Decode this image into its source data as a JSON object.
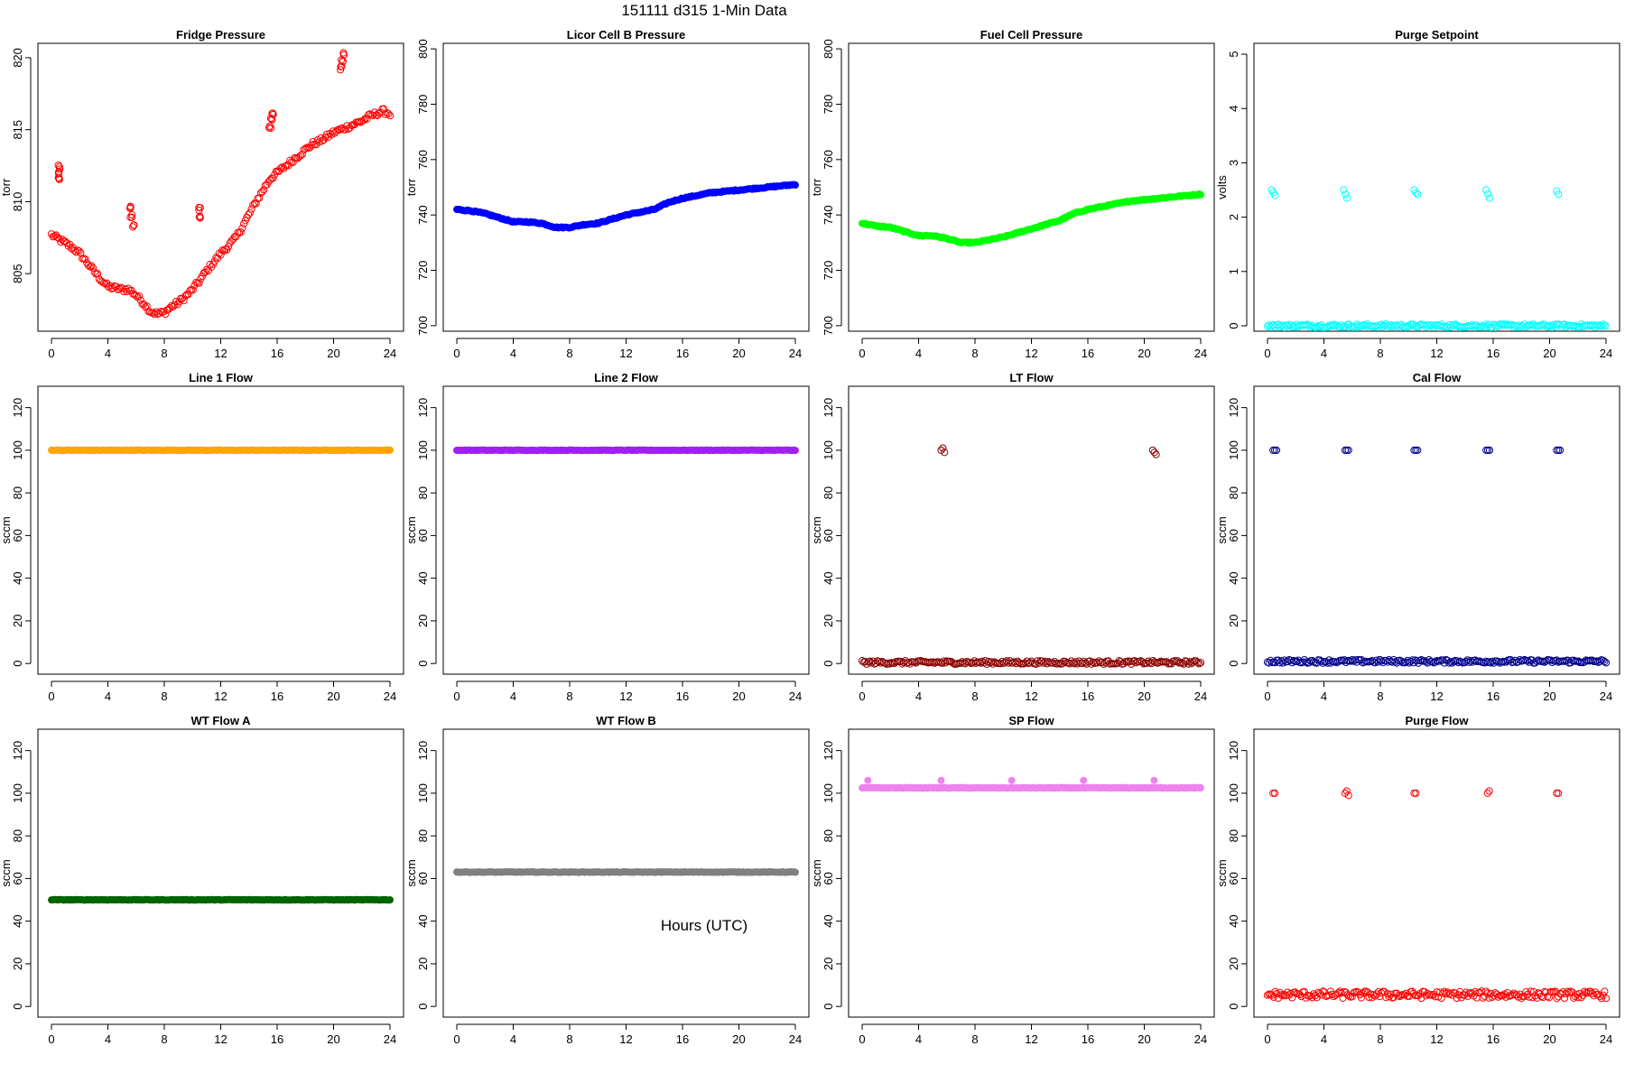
{
  "figure": {
    "title": "151111    d315    1-Min Data",
    "xlabel": "Hours (UTC)"
  },
  "chart_data": [
    {
      "type": "scatter",
      "title": "Fridge Pressure",
      "xlabel": "",
      "ylabel": "torr",
      "xlim": [
        0,
        24
      ],
      "ylim": [
        801,
        821
      ],
      "xticks": [
        0,
        4,
        8,
        12,
        16,
        20,
        24
      ],
      "yticks": [
        805,
        810,
        815,
        820
      ],
      "color": "#ff0000",
      "marker": "open-circle",
      "series": [
        {
          "x": [
            0,
            0.5,
            1,
            1.5,
            2,
            2.5,
            3,
            3.5,
            4,
            4.5,
            5,
            5.5,
            6,
            6.5,
            7,
            7.5,
            8,
            8.5,
            9,
            9.5,
            10,
            10.5,
            11,
            11.5,
            12,
            12.5,
            13,
            13.5,
            14,
            14.5,
            15,
            15.5,
            16,
            16.5,
            17,
            17.5,
            18,
            18.5,
            19,
            19.5,
            20,
            20.5,
            21,
            21.5,
            22,
            22.5,
            23,
            23.5,
            24
          ],
          "y": [
            807.7,
            807.4,
            807.1,
            806.8,
            806.4,
            805.8,
            805.2,
            804.6,
            804.1,
            804.0,
            803.9,
            803.9,
            803.5,
            803.0,
            802.4,
            802.2,
            802.3,
            802.7,
            803.0,
            803.4,
            803.9,
            804.5,
            805.2,
            805.8,
            806.4,
            806.9,
            807.4,
            808.2,
            809.1,
            810.0,
            810.8,
            811.6,
            812.0,
            812.4,
            812.8,
            813.2,
            813.6,
            814.0,
            814.2,
            814.5,
            814.8,
            815.0,
            815.2,
            815.4,
            815.6,
            815.9,
            816.1,
            816.3,
            816.1
          ],
          "outliers": [
            {
              "x": 0.45,
              "y": 812.0
            },
            {
              "x": 0.5,
              "y": 811.6
            },
            {
              "x": 0.55,
              "y": 812.4
            },
            {
              "x": 5.55,
              "y": 809.6
            },
            {
              "x": 5.65,
              "y": 809.0
            },
            {
              "x": 5.8,
              "y": 808.3
            },
            {
              "x": 10.5,
              "y": 809.5
            },
            {
              "x": 10.55,
              "y": 809.0
            },
            {
              "x": 15.5,
              "y": 815.2
            },
            {
              "x": 15.6,
              "y": 815.7
            },
            {
              "x": 15.7,
              "y": 816.1
            },
            {
              "x": 20.5,
              "y": 819.3
            },
            {
              "x": 20.6,
              "y": 819.8
            },
            {
              "x": 20.7,
              "y": 820.2
            }
          ]
        }
      ]
    },
    {
      "type": "scatter",
      "title": "Licor Cell B Pressure",
      "xlabel": "",
      "ylabel": "torr",
      "xlim": [
        0,
        24
      ],
      "ylim": [
        698,
        802
      ],
      "xticks": [
        0,
        4,
        8,
        12,
        16,
        20,
        24
      ],
      "yticks": [
        700,
        720,
        740,
        760,
        780,
        800
      ],
      "color": "#0000ff",
      "marker": "filled-circle",
      "series": [
        {
          "x": [
            0,
            1,
            2,
            3,
            4,
            5,
            6,
            7,
            8,
            9,
            10,
            11,
            12,
            13,
            14,
            15,
            16,
            17,
            18,
            19,
            20,
            21,
            22,
            23,
            24
          ],
          "y": [
            742,
            741.5,
            740.5,
            739,
            737.5,
            737.5,
            737,
            735.5,
            735.5,
            736.5,
            737,
            738.5,
            740,
            741,
            742,
            744.5,
            746,
            747,
            748,
            748.5,
            749,
            749.5,
            750,
            750.5,
            751
          ]
        }
      ]
    },
    {
      "type": "scatter",
      "title": "Fuel Cell Pressure",
      "xlabel": "",
      "ylabel": "torr",
      "xlim": [
        0,
        24
      ],
      "ylim": [
        698,
        802
      ],
      "xticks": [
        0,
        4,
        8,
        12,
        16,
        20,
        24
      ],
      "yticks": [
        700,
        720,
        740,
        760,
        780,
        800
      ],
      "color": "#00ff00",
      "marker": "filled-circle",
      "series": [
        {
          "x": [
            0,
            1,
            2,
            3,
            4,
            5,
            6,
            7,
            8,
            9,
            10,
            11,
            12,
            13,
            14,
            15,
            16,
            17,
            18,
            19,
            20,
            21,
            22,
            23,
            24
          ],
          "y": [
            737,
            736,
            735.5,
            734,
            732.5,
            732.5,
            731.5,
            730,
            730,
            731,
            732,
            733.5,
            735,
            736.5,
            738,
            740.5,
            742,
            743,
            744,
            745,
            745.5,
            746,
            746.5,
            747,
            747.5
          ]
        }
      ]
    },
    {
      "type": "scatter",
      "title": "Purge Setpoint",
      "xlabel": "",
      "ylabel": "volts",
      "xlim": [
        0,
        24
      ],
      "ylim": [
        -0.1,
        5.2
      ],
      "xticks": [
        0,
        4,
        8,
        12,
        16,
        20,
        24
      ],
      "yticks": [
        0,
        1,
        2,
        3,
        4,
        5
      ],
      "color": "#00ffff",
      "marker": "open-circle",
      "series": [
        {
          "baseline": 0,
          "clusters": [
            {
              "x": 0.3,
              "y": [
                2.5,
                2.45,
                2.4
              ]
            },
            {
              "x": 5.4,
              "y": [
                2.5,
                2.42,
                2.35
              ]
            },
            {
              "x": 10.4,
              "y": [
                2.5,
                2.45,
                2.42
              ]
            },
            {
              "x": 15.5,
              "y": [
                2.5,
                2.43,
                2.35
              ]
            },
            {
              "x": 20.5,
              "y": [
                2.48,
                2.42
              ]
            }
          ]
        }
      ]
    },
    {
      "type": "scatter",
      "title": "Line 1 Flow",
      "xlabel": "",
      "ylabel": "sccm",
      "xlim": [
        0,
        24
      ],
      "ylim": [
        -5,
        130
      ],
      "xticks": [
        0,
        4,
        8,
        12,
        16,
        20,
        24
      ],
      "yticks": [
        0,
        20,
        40,
        60,
        80,
        100,
        120
      ],
      "color": "#ffa500",
      "marker": "filled-circle",
      "series": [
        {
          "constant": 100
        }
      ]
    },
    {
      "type": "scatter",
      "title": "Line 2 Flow",
      "xlabel": "",
      "ylabel": "sccm",
      "xlim": [
        0,
        24
      ],
      "ylim": [
        -5,
        130
      ],
      "xticks": [
        0,
        4,
        8,
        12,
        16,
        20,
        24
      ],
      "yticks": [
        0,
        20,
        40,
        60,
        80,
        100,
        120
      ],
      "color": "#a020f0",
      "marker": "filled-circle",
      "series": [
        {
          "constant": 100
        }
      ]
    },
    {
      "type": "scatter",
      "title": "LT Flow",
      "xlabel": "",
      "ylabel": "sccm",
      "xlim": [
        0,
        24
      ],
      "ylim": [
        -5,
        130
      ],
      "xticks": [
        0,
        4,
        8,
        12,
        16,
        20,
        24
      ],
      "yticks": [
        0,
        20,
        40,
        60,
        80,
        100,
        120
      ],
      "color": "#8b0000",
      "marker": "open-circle",
      "series": [
        {
          "baseline": 0.5,
          "clusters": [
            {
              "x": 5.6,
              "y": [
                100,
                101,
                99
              ]
            },
            {
              "x": 20.6,
              "y": [
                100,
                99,
                98
              ]
            }
          ]
        }
      ]
    },
    {
      "type": "scatter",
      "title": "Cal Flow",
      "xlabel": "",
      "ylabel": "sccm",
      "xlim": [
        0,
        24
      ],
      "ylim": [
        -5,
        130
      ],
      "xticks": [
        0,
        4,
        8,
        12,
        16,
        20,
        24
      ],
      "yticks": [
        0,
        20,
        40,
        60,
        80,
        100,
        120
      ],
      "color": "#00008b",
      "marker": "open-circle",
      "series": [
        {
          "baseline": 1,
          "clusters": [
            {
              "x": 0.4,
              "y": [
                100,
                100,
                100
              ]
            },
            {
              "x": 5.5,
              "y": [
                100,
                100,
                100
              ]
            },
            {
              "x": 10.4,
              "y": [
                100,
                100,
                100
              ]
            },
            {
              "x": 15.5,
              "y": [
                100,
                100,
                100
              ]
            },
            {
              "x": 20.5,
              "y": [
                100,
                100,
                100
              ]
            }
          ]
        }
      ]
    },
    {
      "type": "scatter",
      "title": "WT Flow A",
      "xlabel": "",
      "ylabel": "sccm",
      "xlim": [
        0,
        24
      ],
      "ylim": [
        -5,
        130
      ],
      "xticks": [
        0,
        4,
        8,
        12,
        16,
        20,
        24
      ],
      "yticks": [
        0,
        20,
        40,
        60,
        80,
        100,
        120
      ],
      "color": "#006400",
      "marker": "filled-circle",
      "series": [
        {
          "constant": 50
        }
      ]
    },
    {
      "type": "scatter",
      "title": "WT Flow B",
      "xlabel": "",
      "ylabel": "sccm",
      "xlim": [
        0,
        24
      ],
      "ylim": [
        -5,
        130
      ],
      "xticks": [
        0,
        4,
        8,
        12,
        16,
        20,
        24
      ],
      "yticks": [
        0,
        20,
        40,
        60,
        80,
        100,
        120
      ],
      "color": "#808080",
      "marker": "filled-circle",
      "series": [
        {
          "constant": 63
        }
      ]
    },
    {
      "type": "scatter",
      "title": "SP Flow",
      "xlabel": "",
      "ylabel": "sccm",
      "xlim": [
        0,
        24
      ],
      "ylim": [
        -5,
        130
      ],
      "xticks": [
        0,
        4,
        8,
        12,
        16,
        20,
        24
      ],
      "yticks": [
        0,
        20,
        40,
        60,
        80,
        100,
        120
      ],
      "color": "#ee82ee",
      "marker": "filled-circle",
      "series": [
        {
          "constant": 102.5,
          "clusters": [
            {
              "x": 0.4,
              "y": [
                106
              ]
            },
            {
              "x": 5.6,
              "y": [
                106
              ]
            },
            {
              "x": 10.6,
              "y": [
                106
              ]
            },
            {
              "x": 15.7,
              "y": [
                106
              ]
            },
            {
              "x": 20.7,
              "y": [
                106
              ]
            }
          ]
        }
      ]
    },
    {
      "type": "scatter",
      "title": "Purge Flow",
      "xlabel": "",
      "ylabel": "sccm",
      "xlim": [
        0,
        24
      ],
      "ylim": [
        -5,
        130
      ],
      "xticks": [
        0,
        4,
        8,
        12,
        16,
        20,
        24
      ],
      "yticks": [
        0,
        20,
        40,
        60,
        80,
        100,
        120
      ],
      "color": "#ff0000",
      "marker": "open-circle",
      "series": [
        {
          "baseline": 5.5,
          "clusters": [
            {
              "x": 0.4,
              "y": [
                100,
                100
              ]
            },
            {
              "x": 5.5,
              "y": [
                100,
                101,
                99
              ]
            },
            {
              "x": 10.4,
              "y": [
                100,
                100
              ]
            },
            {
              "x": 15.6,
              "y": [
                100,
                101
              ]
            },
            {
              "x": 20.5,
              "y": [
                100,
                100
              ]
            }
          ]
        }
      ]
    }
  ]
}
